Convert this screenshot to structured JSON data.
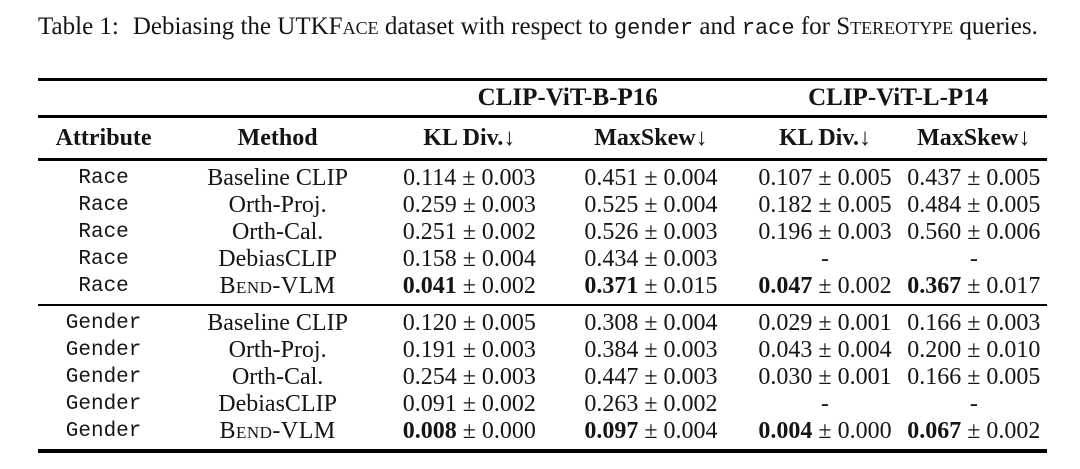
{
  "caption": {
    "label": "Table 1:",
    "segments": [
      {
        "text": "Debiasing the",
        "style": "plain"
      },
      {
        "text": "UTKFace",
        "style": "smallcaps"
      },
      {
        "text": "dataset with respect to",
        "style": "plain"
      },
      {
        "text": "gender",
        "style": "mono"
      },
      {
        "text": "and",
        "style": "plain"
      },
      {
        "text": "race",
        "style": "mono"
      },
      {
        "text": "for",
        "style": "plain"
      },
      {
        "text": "Stereotype",
        "style": "smallcaps"
      },
      {
        "text": "queries.",
        "style": "plain"
      }
    ]
  },
  "table": {
    "group_headers": [
      "CLIP-ViT-B-P16",
      "CLIP-ViT-L-P14"
    ],
    "column_headers": [
      "Attribute",
      "Method",
      "KL Div.↓",
      "MaxSkew↓",
      "KL Div.↓",
      "MaxSkew↓"
    ],
    "plus_minus": "±",
    "sections": [
      {
        "name": "race",
        "rows": [
          {
            "attribute": "Race",
            "method": "Baseline CLIP",
            "method_smallcaps": false,
            "values": [
              {
                "mean": "0.114",
                "std": "0.003",
                "bold": false
              },
              {
                "mean": "0.451",
                "std": "0.004",
                "bold": false
              },
              {
                "mean": "0.107",
                "std": "0.005",
                "bold": false
              },
              {
                "mean": "0.437",
                "std": "0.005",
                "bold": false
              }
            ]
          },
          {
            "attribute": "Race",
            "method": "Orth-Proj.",
            "method_smallcaps": false,
            "values": [
              {
                "mean": "0.259",
                "std": "0.003",
                "bold": false
              },
              {
                "mean": "0.525",
                "std": "0.004",
                "bold": false
              },
              {
                "mean": "0.182",
                "std": "0.005",
                "bold": false
              },
              {
                "mean": "0.484",
                "std": "0.005",
                "bold": false
              }
            ]
          },
          {
            "attribute": "Race",
            "method": "Orth-Cal.",
            "method_smallcaps": false,
            "values": [
              {
                "mean": "0.251",
                "std": "0.002",
                "bold": false
              },
              {
                "mean": "0.526",
                "std": "0.003",
                "bold": false
              },
              {
                "mean": "0.196",
                "std": "0.003",
                "bold": false
              },
              {
                "mean": "0.560",
                "std": "0.006",
                "bold": false
              }
            ]
          },
          {
            "attribute": "Race",
            "method": "DebiasCLIP",
            "method_smallcaps": false,
            "values": [
              {
                "mean": "0.158",
                "std": "0.004",
                "bold": false
              },
              {
                "mean": "0.434",
                "std": "0.003",
                "bold": false
              },
              {
                "mean": "-",
                "std": null,
                "bold": false
              },
              {
                "mean": "-",
                "std": null,
                "bold": false
              }
            ]
          },
          {
            "attribute": "Race",
            "method": "Bend-VLM",
            "method_smallcaps": true,
            "values": [
              {
                "mean": "0.041",
                "std": "0.002",
                "bold": true
              },
              {
                "mean": "0.371",
                "std": "0.015",
                "bold": true
              },
              {
                "mean": "0.047",
                "std": "0.002",
                "bold": true
              },
              {
                "mean": "0.367",
                "std": "0.017",
                "bold": true
              }
            ]
          }
        ]
      },
      {
        "name": "gender",
        "rows": [
          {
            "attribute": "Gender",
            "method": "Baseline CLIP",
            "method_smallcaps": false,
            "values": [
              {
                "mean": "0.120",
                "std": "0.005",
                "bold": false
              },
              {
                "mean": "0.308",
                "std": "0.004",
                "bold": false
              },
              {
                "mean": "0.029",
                "std": "0.001",
                "bold": false
              },
              {
                "mean": "0.166",
                "std": "0.003",
                "bold": false
              }
            ]
          },
          {
            "attribute": "Gender",
            "method": "Orth-Proj.",
            "method_smallcaps": false,
            "values": [
              {
                "mean": "0.191",
                "std": "0.003",
                "bold": false
              },
              {
                "mean": "0.384",
                "std": "0.003",
                "bold": false
              },
              {
                "mean": "0.043",
                "std": "0.004",
                "bold": false
              },
              {
                "mean": "0.200",
                "std": "0.010",
                "bold": false
              }
            ]
          },
          {
            "attribute": "Gender",
            "method": "Orth-Cal.",
            "method_smallcaps": false,
            "values": [
              {
                "mean": "0.254",
                "std": "0.003",
                "bold": false
              },
              {
                "mean": "0.447",
                "std": "0.003",
                "bold": false
              },
              {
                "mean": "0.030",
                "std": "0.001",
                "bold": false
              },
              {
                "mean": "0.166",
                "std": "0.005",
                "bold": false
              }
            ]
          },
          {
            "attribute": "Gender",
            "method": "DebiasCLIP",
            "method_smallcaps": false,
            "values": [
              {
                "mean": "0.091",
                "std": "0.002",
                "bold": false
              },
              {
                "mean": "0.263",
                "std": "0.002",
                "bold": false
              },
              {
                "mean": "-",
                "std": null,
                "bold": false
              },
              {
                "mean": "-",
                "std": null,
                "bold": false
              }
            ]
          },
          {
            "attribute": "Gender",
            "method": "Bend-VLM",
            "method_smallcaps": true,
            "values": [
              {
                "mean": "0.008",
                "std": "0.000",
                "bold": true
              },
              {
                "mean": "0.097",
                "std": "0.004",
                "bold": true
              },
              {
                "mean": "0.004",
                "std": "0.000",
                "bold": true
              },
              {
                "mean": "0.067",
                "std": "0.002",
                "bold": true
              }
            ]
          }
        ]
      }
    ]
  }
}
